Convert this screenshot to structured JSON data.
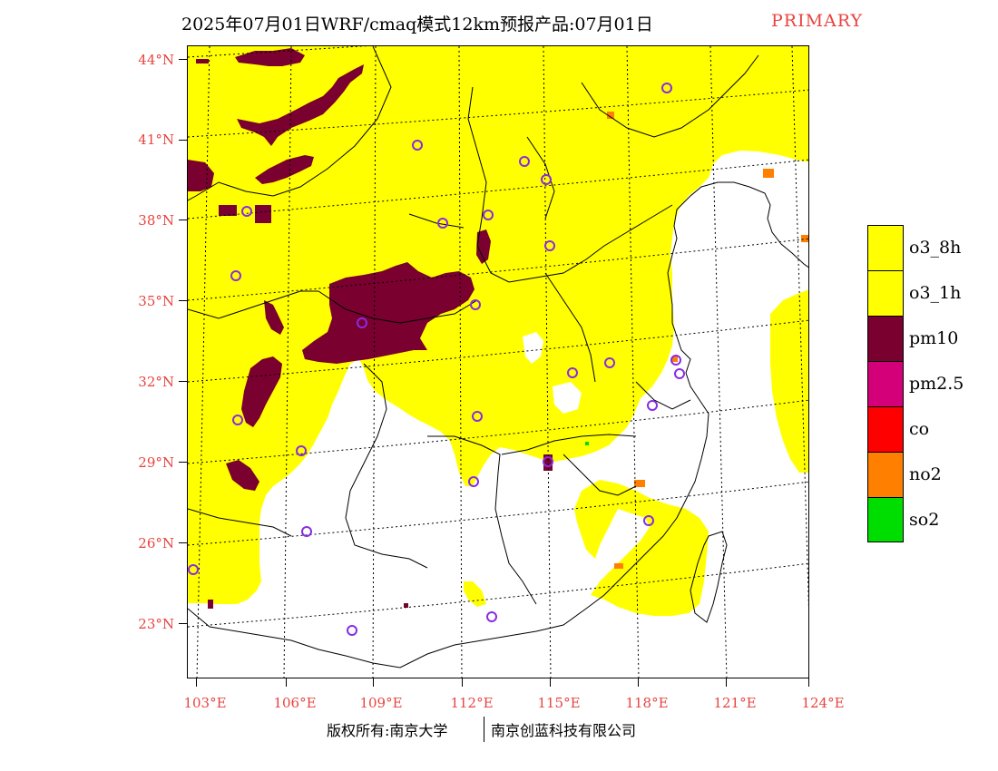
{
  "title": {
    "main": "2025年07月01日WRF/cmaq模式12km预报产品:07月01日",
    "tag": "PRIMARY",
    "tag_color": "#e8433f"
  },
  "axes": {
    "lat_labels": [
      "44°N",
      "41°N",
      "38°N",
      "35°N",
      "32°N",
      "29°N",
      "26°N",
      "23°N"
    ],
    "lon_labels": [
      "103°E",
      "106°E",
      "109°E",
      "112°E",
      "115°E",
      "118°E",
      "121°E",
      "124°E"
    ],
    "label_color": "#e8433f"
  },
  "legend": {
    "items": [
      {
        "label": "o3_8h",
        "color": "#ffff00"
      },
      {
        "label": "o3_1h",
        "color": "#ffff00"
      },
      {
        "label": "pm10",
        "color": "#7a0030"
      },
      {
        "label": "pm2.5",
        "color": "#d4007a"
      },
      {
        "label": "co",
        "color": "#ff0000"
      },
      {
        "label": "no2",
        "color": "#ff7f00"
      },
      {
        "label": "so2",
        "color": "#00dd00"
      }
    ]
  },
  "footer": {
    "left": "版权所有:南京大学",
    "right": "南京创蓝科技有限公司"
  },
  "map": {
    "pollutant_colors": {
      "o3": "#ffff00",
      "pm10": "#7a0030",
      "no2": "#ff7f00",
      "so2": "#00dd00",
      "station_marker": "#8a2be2"
    }
  }
}
